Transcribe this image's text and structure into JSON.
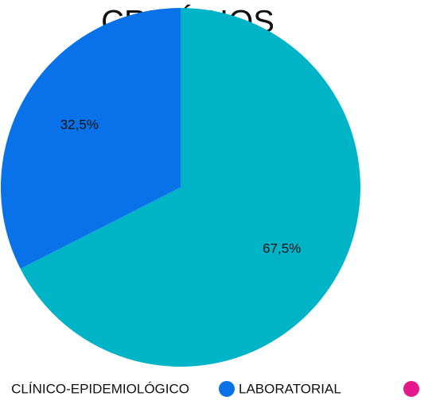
{
  "chart_data": {
    "type": "pie",
    "title": "CRITÉRIOS",
    "categories": [
      "CLÍNICO-EPIDEMIOLÓGICO",
      "LABORATORIAL"
    ],
    "values": [
      67.5,
      32.5
    ],
    "value_labels": [
      "67,5%",
      "32,5%"
    ],
    "colors": [
      "#00b4c8",
      "#0a72e8"
    ],
    "start_angle": 0,
    "direction": "clockwise"
  }
}
